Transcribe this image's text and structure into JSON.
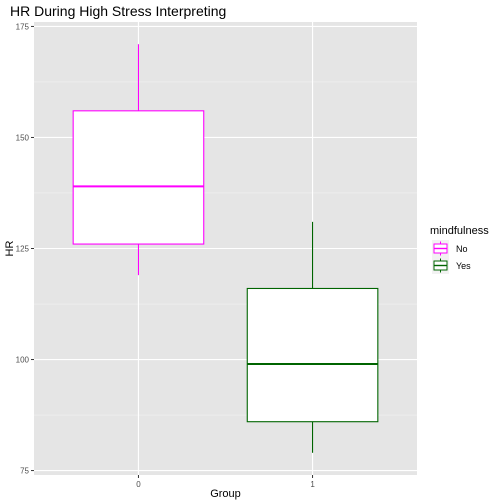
{
  "chart_data": {
    "type": "boxplot",
    "title": "HR During High Stress Interpreting",
    "xlabel": "Group",
    "ylabel": "HR",
    "categories": [
      "0",
      "1"
    ],
    "ylim": [
      74,
      176
    ],
    "yticks": [
      75,
      100,
      125,
      150,
      175
    ],
    "grid": true,
    "legend": {
      "title": "mindfulness",
      "position": "right",
      "entries": [
        "No",
        "Yes"
      ]
    },
    "series": [
      {
        "name": "No",
        "category": "0",
        "color": "#ff00ff",
        "min": 119,
        "q1": 126,
        "median": 139,
        "q3": 156,
        "max": 171
      },
      {
        "name": "Yes",
        "category": "1",
        "color": "#006400",
        "min": 79,
        "q1": 86,
        "median": 99,
        "q3": 116,
        "max": 131
      }
    ],
    "colors": {
      "panel": "#e5e5e5",
      "grid_major": "#ffffff",
      "grid_minor": "#f2f2f2",
      "tick": "#333333"
    }
  }
}
